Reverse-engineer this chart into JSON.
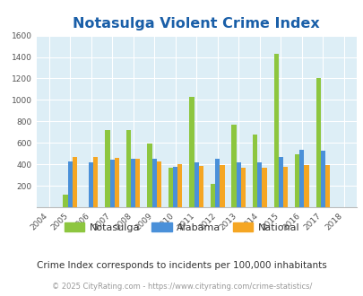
{
  "title": "Notasulga Violent Crime Index",
  "subtitle": "Crime Index corresponds to incidents per 100,000 inhabitants",
  "footer": "© 2025 CityRating.com - https://www.cityrating.com/crime-statistics/",
  "years": [
    2004,
    2005,
    2006,
    2007,
    2008,
    2009,
    2010,
    2011,
    2012,
    2013,
    2014,
    2015,
    2016,
    2017,
    2018
  ],
  "notasulga": [
    0,
    120,
    0,
    720,
    720,
    590,
    370,
    1030,
    215,
    770,
    680,
    1430,
    490,
    1200,
    0
  ],
  "alabama": [
    0,
    430,
    420,
    440,
    455,
    450,
    380,
    420,
    450,
    420,
    415,
    470,
    535,
    525,
    0
  ],
  "national": [
    0,
    470,
    470,
    460,
    455,
    430,
    400,
    385,
    395,
    370,
    365,
    375,
    395,
    390,
    0
  ],
  "notasulga_color": "#8dc63f",
  "alabama_color": "#4a90d9",
  "national_color": "#f5a623",
  "plot_bg_color": "#ddeef6",
  "ylim": [
    0,
    1600
  ],
  "yticks": [
    0,
    200,
    400,
    600,
    800,
    1000,
    1200,
    1400,
    1600
  ],
  "bar_width": 0.22,
  "title_color": "#1a5fa8",
  "subtitle_color": "#333333",
  "footer_color": "#999999",
  "legend_labels": [
    "Notasulga",
    "Alabama",
    "National"
  ]
}
